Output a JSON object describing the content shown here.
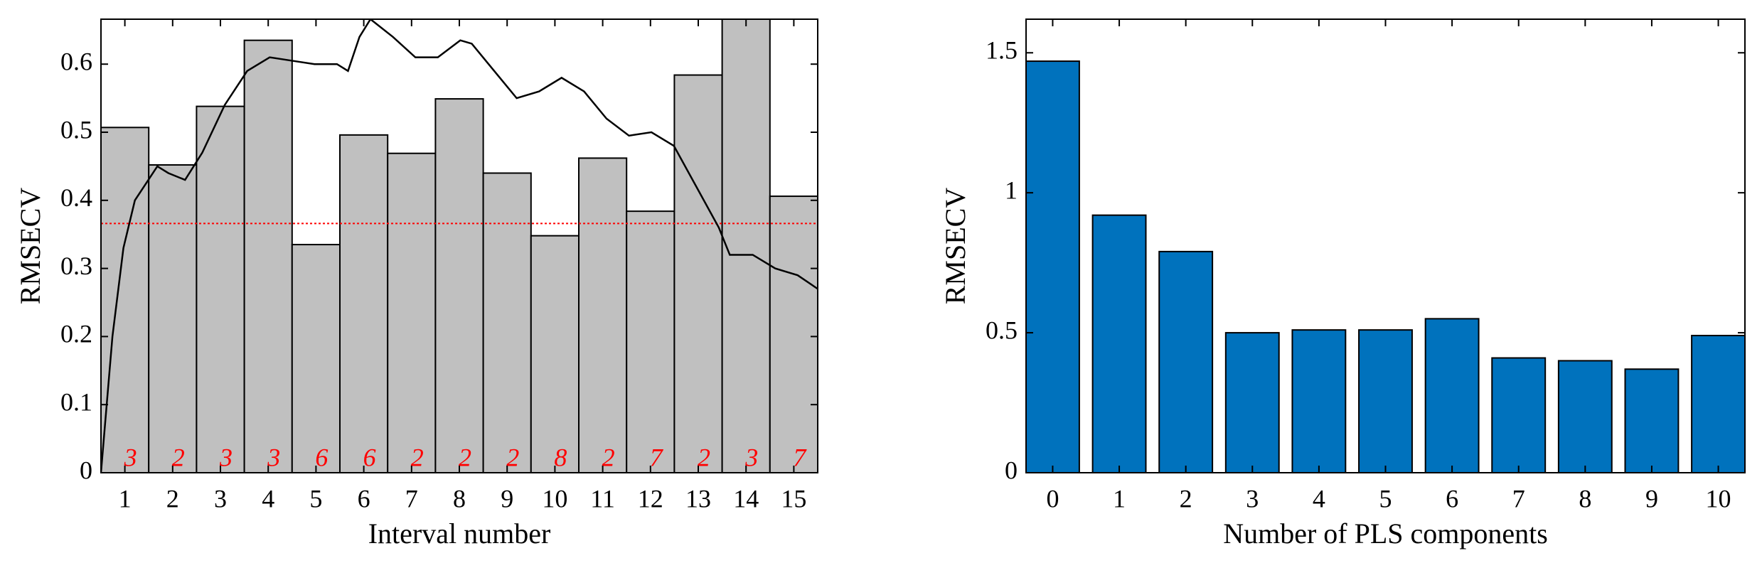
{
  "chart_data": [
    {
      "type": "bar",
      "xlabel": "Interval number",
      "ylabel": "RMSECV",
      "x": [
        1,
        2,
        3,
        4,
        5,
        6,
        7,
        8,
        9,
        10,
        11,
        12,
        13,
        14,
        15
      ],
      "values": [
        0.507,
        0.452,
        0.538,
        0.635,
        0.335,
        0.496,
        0.469,
        0.549,
        0.44,
        0.348,
        0.462,
        0.384,
        0.584,
        0.666,
        0.406
      ],
      "bar_width": 1,
      "color": "#c0c0c0",
      "components": [
        3,
        2,
        3,
        3,
        6,
        6,
        2,
        2,
        2,
        8,
        2,
        7,
        2,
        3,
        7
      ],
      "components_color": "#ff0000",
      "reference": 0.366,
      "reference_color": "#ff0000",
      "curve": {
        "color": "#000000",
        "x": [
          0.5,
          0.74,
          0.97,
          1.21,
          1.68,
          1.91,
          2.26,
          2.62,
          3.09,
          3.56,
          4.03,
          4.5,
          4.97,
          5.44,
          5.67,
          5.91,
          6.14,
          6.61,
          7.08,
          7.55,
          8.02,
          8.26,
          8.73,
          9.2,
          9.67,
          10.14,
          10.61,
          11.08,
          11.55,
          12.02,
          12.49,
          12.96,
          13.43,
          13.66,
          14.14,
          14.61,
          15.08,
          15.5
        ],
        "values": [
          0,
          0.2,
          0.33,
          0.4,
          0.45,
          0.44,
          0.43,
          0.47,
          0.54,
          0.59,
          0.61,
          0.605,
          0.6,
          0.6,
          0.59,
          0.64,
          0.666,
          0.64,
          0.61,
          0.61,
          0.635,
          0.63,
          0.59,
          0.55,
          0.56,
          0.58,
          0.56,
          0.52,
          0.495,
          0.5,
          0.48,
          0.42,
          0.36,
          0.32,
          0.32,
          0.3,
          0.29,
          0.27
        ]
      },
      "xlim": [
        0.5,
        15.5
      ],
      "xticks": [
        1,
        2,
        3,
        4,
        5,
        6,
        7,
        8,
        9,
        10,
        11,
        12,
        13,
        14,
        15
      ],
      "ylim": [
        0,
        0.666
      ],
      "yticks": [
        0,
        0.1,
        0.2,
        0.3,
        0.4,
        0.5,
        0.6
      ]
    },
    {
      "type": "bar",
      "xlabel": "Number of PLS components",
      "ylabel": "RMSECV",
      "x": [
        0,
        1,
        2,
        3,
        4,
        5,
        6,
        7,
        8,
        9,
        10
      ],
      "values": [
        1.47,
        0.92,
        0.79,
        0.5,
        0.51,
        0.51,
        0.55,
        0.41,
        0.4,
        0.37,
        0.49
      ],
      "bar_width": 0.8,
      "color": "#0072bd",
      "xlim": [
        -0.4,
        10.4
      ],
      "xticks": [
        0,
        1,
        2,
        3,
        4,
        5,
        6,
        7,
        8,
        9,
        10
      ],
      "ylim": [
        0,
        1.62
      ],
      "yticks": [
        0,
        0.5,
        1,
        1.5
      ]
    }
  ]
}
